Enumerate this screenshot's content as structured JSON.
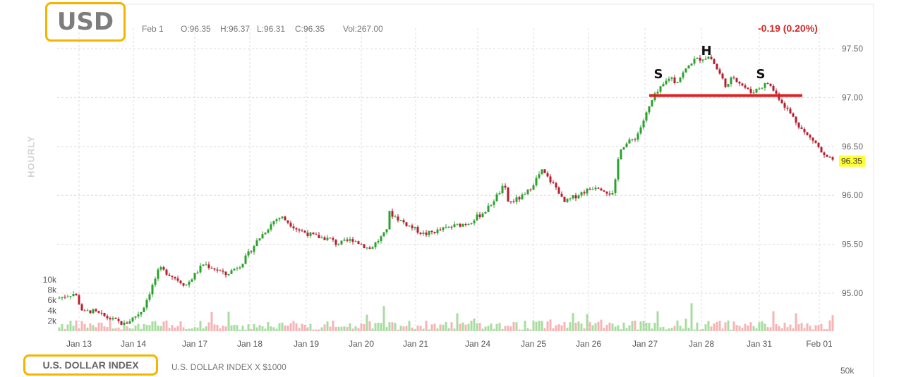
{
  "header": {
    "ticker": "USD",
    "date": "Feb 1",
    "open": "O:96.35",
    "high": "H:96.37",
    "low": "L:96.31",
    "close": "C:96.35",
    "volume": "Vol:267.00",
    "change": "-0.19 (0.20%)"
  },
  "footer": {
    "index_name": "U.S. DOLLAR INDEX",
    "index_sub": "U.S. DOLLAR INDEX X $1000",
    "volume_scale_label": "50k"
  },
  "colors": {
    "up": "#2ca02c",
    "down": "#b41e2d",
    "up_volume": "#a8dca0",
    "down_volume": "#f6b4b4",
    "neckline": "#e02020",
    "highlight": "#f5b400",
    "last_price_bg": "#ffff33"
  },
  "chart_data": {
    "type": "candlestick",
    "interval_label": "HOURLY",
    "ylim": [
      94.6,
      97.6
    ],
    "y_ticks": [
      "97.50",
      "97.00",
      "96.50",
      "96.00",
      "95.50",
      "95.00"
    ],
    "x_ticks": [
      "Jan 13",
      "Jan 14",
      "Jan 17",
      "Jan 18",
      "Jan 19",
      "Jan 20",
      "Jan 21",
      "Jan 24",
      "Jan 25",
      "Jan 26",
      "Jan 27",
      "Jan 28",
      "Jan 31",
      "Feb 01"
    ],
    "last_price": "96.35",
    "volume_ticks": [
      "10k",
      "8k",
      "6k",
      "4k",
      "2k"
    ],
    "volume_max": 10000,
    "price_path": [
      [
        "Jan 13",
        94.95
      ],
      [
        "Jan 13",
        95.0
      ],
      [
        "Jan 13",
        94.8
      ],
      [
        "Jan 13",
        94.82
      ],
      [
        "Jan 14",
        94.75
      ],
      [
        "Jan 14",
        94.68
      ],
      [
        "Jan 14",
        94.82
      ],
      [
        "Jan 14",
        95.25
      ],
      [
        "Jan 17",
        95.2
      ],
      [
        "Jan 17",
        95.08
      ],
      [
        "Jan 17",
        95.3
      ],
      [
        "Jan 17",
        95.22
      ],
      [
        "Jan 18",
        95.18
      ],
      [
        "Jan 18",
        95.3
      ],
      [
        "Jan 18",
        95.55
      ],
      [
        "Jan 18",
        95.75
      ],
      [
        "Jan 19",
        95.78
      ],
      [
        "Jan 19",
        95.65
      ],
      [
        "Jan 19",
        95.58
      ],
      [
        "Jan 19",
        95.55
      ],
      [
        "Jan 20",
        95.5
      ],
      [
        "Jan 20",
        95.55
      ],
      [
        "Jan 20",
        95.45
      ],
      [
        "Jan 20",
        95.62
      ],
      [
        "Jan 21",
        95.82
      ],
      [
        "Jan 21",
        95.7
      ],
      [
        "Jan 21",
        95.6
      ],
      [
        "Jan 21",
        95.65
      ],
      [
        "Jan 24",
        95.68
      ],
      [
        "Jan 24",
        95.72
      ],
      [
        "Jan 24",
        95.85
      ],
      [
        "Jan 24",
        96.1
      ],
      [
        "Jan 25",
        95.92
      ],
      [
        "Jan 25",
        96.0
      ],
      [
        "Jan 25",
        96.25
      ],
      [
        "Jan 25",
        96.05
      ],
      [
        "Jan 26",
        95.92
      ],
      [
        "Jan 26",
        96.02
      ],
      [
        "Jan 26",
        96.1
      ],
      [
        "Jan 26",
        96.0
      ],
      [
        "Jan 27",
        96.48
      ],
      [
        "Jan 27",
        96.6
      ],
      [
        "Jan 27",
        97.0
      ],
      [
        "Jan 27",
        97.22
      ],
      [
        "Jan 28",
        97.15
      ],
      [
        "Jan 28",
        97.38
      ],
      [
        "Jan 28",
        97.42
      ],
      [
        "Jan 28",
        97.1
      ],
      [
        "Jan 31",
        97.22
      ],
      [
        "Jan 31",
        97.05
      ],
      [
        "Jan 31",
        97.15
      ],
      [
        "Jan 31",
        96.9
      ],
      [
        "Feb 01",
        96.62
      ],
      [
        "Feb 01",
        96.55
      ],
      [
        "Feb 01",
        96.4
      ],
      [
        "Feb 01",
        96.35
      ]
    ],
    "annotations": [
      {
        "text": "S",
        "price": 97.24,
        "session": "Jan 27",
        "offset": 0.65
      },
      {
        "text": "H",
        "price": 97.48,
        "session": "Jan 28",
        "offset": 0.0
      },
      {
        "text": "S",
        "price": 97.24,
        "session": "Jan 31",
        "offset": -0.1
      }
    ],
    "neckline": {
      "price": 97.02,
      "from_session": "Jan 27",
      "to_session": "Jan 31"
    }
  }
}
